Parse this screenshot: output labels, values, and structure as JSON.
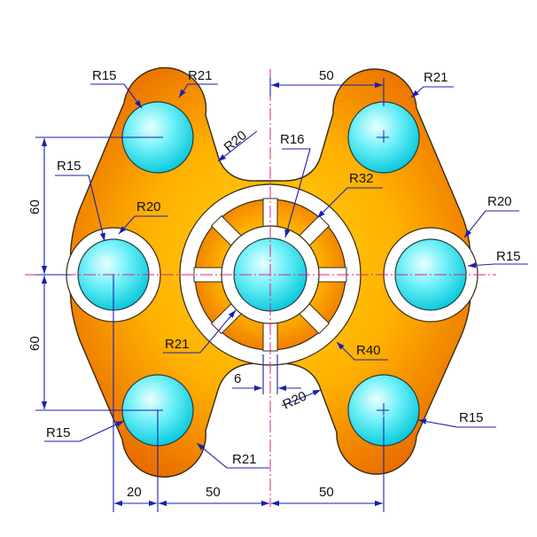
{
  "drawing": {
    "colors": {
      "plate_light": "#ffd21a",
      "plate_dark": "#e86a00",
      "hole_light": "#e9ffff",
      "hole_dark": "#00c6d8",
      "dimension": "#1a1fb0",
      "center_line": "#e0208a",
      "ring": "#ffffff"
    },
    "icons": {
      "arrowhead": "filled-triangle-arrow-icon"
    },
    "labels": {
      "top_left_r15": "R15",
      "top_left_r21": "R21",
      "top_right_r21": "R21",
      "mid_r20": "R20",
      "center_r16": "R16",
      "center_r32": "R32",
      "left_r15": "R15",
      "left_r20": "R20",
      "right_r20": "R20",
      "right_r15": "R15",
      "inner_r21": "R21",
      "outer_r40": "R40",
      "bottom_r20": "R20",
      "bottom_left_r15": "R15",
      "bottom_left_r21": "R21",
      "bottom_right_r15": "R15"
    },
    "dimensions": {
      "top_width": "50",
      "upper_height": "60",
      "lower_height": "60",
      "rib_width": "6",
      "bottom_left": "20",
      "bottom_mid": "50",
      "bottom_right": "50"
    }
  }
}
